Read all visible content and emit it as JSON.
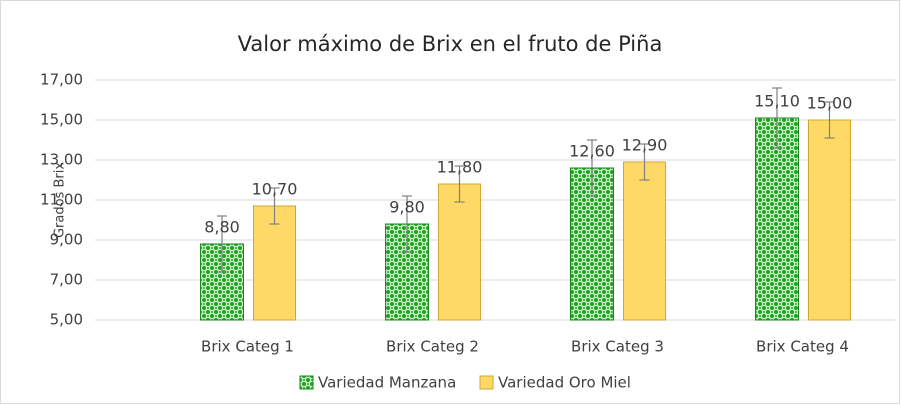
{
  "chart_data": {
    "type": "bar",
    "title": "Valor máximo de Brix en el fruto de Piña",
    "y_label": "Grados Brix",
    "categories": [
      "Brix  Categ 1",
      "Brix  Categ 2",
      "Brix  Categ 3",
      "Brix  Categ 4"
    ],
    "series": [
      {
        "name": "Variedad Manzana",
        "color": "#22a022",
        "values": [
          8.8,
          9.8,
          12.6,
          15.1
        ],
        "value_labels": [
          "8,80",
          "9,80",
          "12,60",
          "15,10"
        ],
        "errors": [
          1.4,
          1.4,
          1.4,
          1.5
        ]
      },
      {
        "name": "Variedad Oro Miel",
        "color": "#ffd966",
        "values": [
          10.7,
          11.8,
          12.9,
          15.0
        ],
        "value_labels": [
          "10,70",
          "11,80",
          "12,90",
          "15,00"
        ],
        "errors": [
          0.9,
          0.9,
          0.9,
          0.9
        ]
      }
    ],
    "ylim": [
      5,
      17
    ],
    "yticks": [
      {
        "value": 5,
        "label": "5,00"
      },
      {
        "value": 7,
        "label": "7,00"
      },
      {
        "value": 9,
        "label": "9,00"
      },
      {
        "value": 11,
        "label": "11,00"
      },
      {
        "value": 13,
        "label": "13,00"
      },
      {
        "value": 15,
        "label": "15,00"
      },
      {
        "value": 17,
        "label": "17,00"
      }
    ],
    "grid": true,
    "legend": "bottom"
  }
}
